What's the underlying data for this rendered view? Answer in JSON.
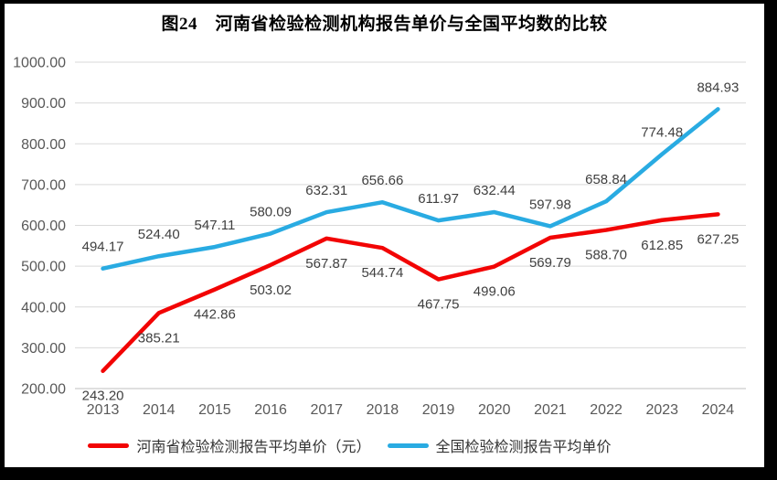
{
  "chart_data": {
    "type": "line",
    "title": "图24　河南省检验检测机构报告单价与全国平均数的比较",
    "categories": [
      "2013",
      "2014",
      "2015",
      "2016",
      "2017",
      "2018",
      "2019",
      "2020",
      "2021",
      "2022",
      "2023",
      "2024"
    ],
    "series": [
      {
        "name": "河南省检验检测报告平均单价（元）",
        "color": "#F20404",
        "label_position": "below",
        "values": [
          243.2,
          385.21,
          442.86,
          503.02,
          567.87,
          544.74,
          467.75,
          499.06,
          569.79,
          588.7,
          612.85,
          627.25
        ]
      },
      {
        "name": "全国检验检测报告平均单价",
        "color": "#29ABE2",
        "label_position": "above",
        "values": [
          494.17,
          524.4,
          547.11,
          580.09,
          632.31,
          656.66,
          611.97,
          632.44,
          597.98,
          658.84,
          774.48,
          884.93
        ]
      }
    ],
    "ylim": [
      200,
      1000
    ],
    "y_tick_step": 100,
    "y_ticks": [
      "1000.00",
      "900.00",
      "800.00",
      "700.00",
      "600.00",
      "500.00",
      "400.00",
      "300.00",
      "200.00"
    ],
    "value_label_format": "0.00",
    "grid": "horizontal",
    "legend_position": "bottom",
    "colors": {
      "gridline": "#D9D9D9",
      "axis_line": "#BFBFBF",
      "tick_text": "#595959",
      "data_label_text": "#404040",
      "title_text": "#000000",
      "background": "#FFFFFF",
      "border": "#000000"
    }
  }
}
